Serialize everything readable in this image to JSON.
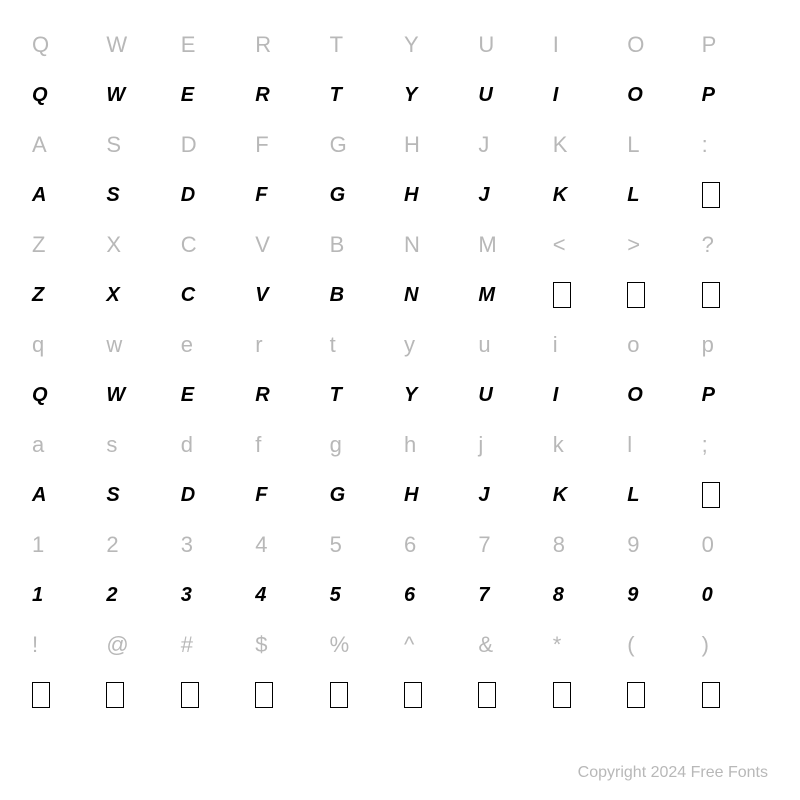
{
  "grid": {
    "columns": 10,
    "rows": [
      {
        "type": "ref",
        "chars": [
          "Q",
          "W",
          "E",
          "R",
          "T",
          "Y",
          "U",
          "I",
          "O",
          "P"
        ]
      },
      {
        "type": "glyph",
        "chars": [
          "Q",
          "W",
          "E",
          "R",
          "T",
          "Y",
          "U",
          "I",
          "O",
          "P"
        ],
        "boxes": []
      },
      {
        "type": "ref",
        "chars": [
          "A",
          "S",
          "D",
          "F",
          "G",
          "H",
          "J",
          "K",
          "L",
          ":"
        ]
      },
      {
        "type": "glyph",
        "chars": [
          "A",
          "S",
          "D",
          "F",
          "G",
          "H",
          "J",
          "K",
          "L",
          ""
        ],
        "boxes": [
          9
        ]
      },
      {
        "type": "ref",
        "chars": [
          "Z",
          "X",
          "C",
          "V",
          "B",
          "N",
          "M",
          "<",
          ">",
          "?"
        ]
      },
      {
        "type": "glyph",
        "chars": [
          "Z",
          "X",
          "C",
          "V",
          "B",
          "N",
          "M",
          "",
          "",
          ""
        ],
        "boxes": [
          7,
          8,
          9
        ]
      },
      {
        "type": "ref",
        "chars": [
          "q",
          "w",
          "e",
          "r",
          "t",
          "y",
          "u",
          "i",
          "o",
          "p"
        ]
      },
      {
        "type": "glyph",
        "chars": [
          "Q",
          "W",
          "E",
          "R",
          "T",
          "Y",
          "U",
          "I",
          "O",
          "P"
        ],
        "boxes": []
      },
      {
        "type": "ref",
        "chars": [
          "a",
          "s",
          "d",
          "f",
          "g",
          "h",
          "j",
          "k",
          "l",
          ";"
        ]
      },
      {
        "type": "glyph",
        "chars": [
          "A",
          "S",
          "D",
          "F",
          "G",
          "H",
          "J",
          "K",
          "L",
          ""
        ],
        "boxes": [
          9
        ]
      },
      {
        "type": "ref",
        "chars": [
          "1",
          "2",
          "3",
          "4",
          "5",
          "6",
          "7",
          "8",
          "9",
          "0"
        ]
      },
      {
        "type": "glyph",
        "chars": [
          "1",
          "2",
          "3",
          "4",
          "5",
          "6",
          "7",
          "8",
          "9",
          "0"
        ],
        "boxes": []
      },
      {
        "type": "ref",
        "chars": [
          "!",
          "@",
          "#",
          "$",
          "%",
          "^",
          "&",
          "*",
          "(",
          ")"
        ]
      },
      {
        "type": "glyph",
        "chars": [
          "",
          "",
          "",
          "",
          "",
          "",
          "",
          "",
          "",
          ""
        ],
        "boxes": [
          0,
          1,
          2,
          3,
          4,
          5,
          6,
          7,
          8,
          9
        ]
      }
    ]
  },
  "footer_text": "Copyright 2024 Free Fonts",
  "colors": {
    "ref_char_color": "#b8b8b8",
    "glyph_char_color": "#000000",
    "background": "#ffffff",
    "footer_color": "#b8b8b8"
  },
  "typography": {
    "ref_fontsize": 22,
    "glyph_fontsize": 20,
    "footer_fontsize": 16
  }
}
